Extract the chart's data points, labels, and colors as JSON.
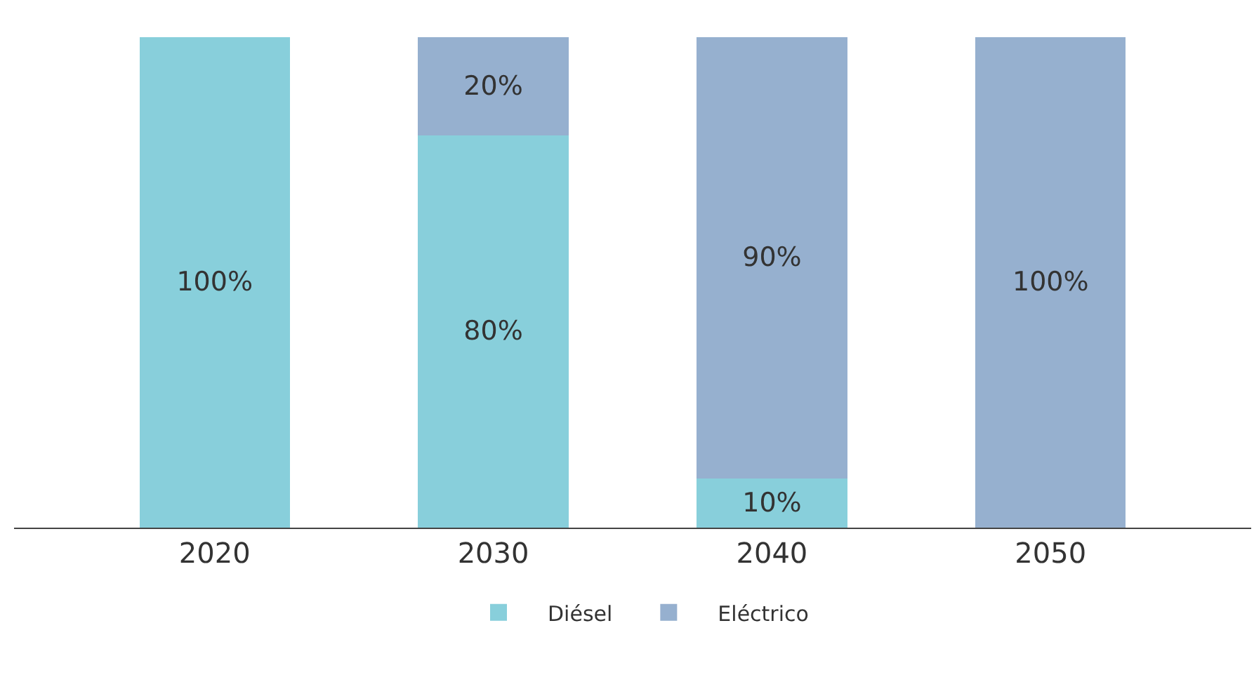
{
  "chart_data": {
    "type": "bar",
    "stacked": true,
    "categories": [
      "2020",
      "2030",
      "2040",
      "2050"
    ],
    "series": [
      {
        "name": "Diésel",
        "color": "#88cfdb",
        "values": [
          100,
          80,
          10,
          0
        ],
        "value_labels": [
          "100%",
          "80%",
          "10%",
          null
        ]
      },
      {
        "name": "Eléctrico",
        "color": "#96b0cf",
        "values": [
          0,
          20,
          90,
          100
        ],
        "value_labels": [
          null,
          "20%",
          "90%",
          "100%"
        ]
      }
    ],
    "legend": "bottom",
    "grid": false
  }
}
